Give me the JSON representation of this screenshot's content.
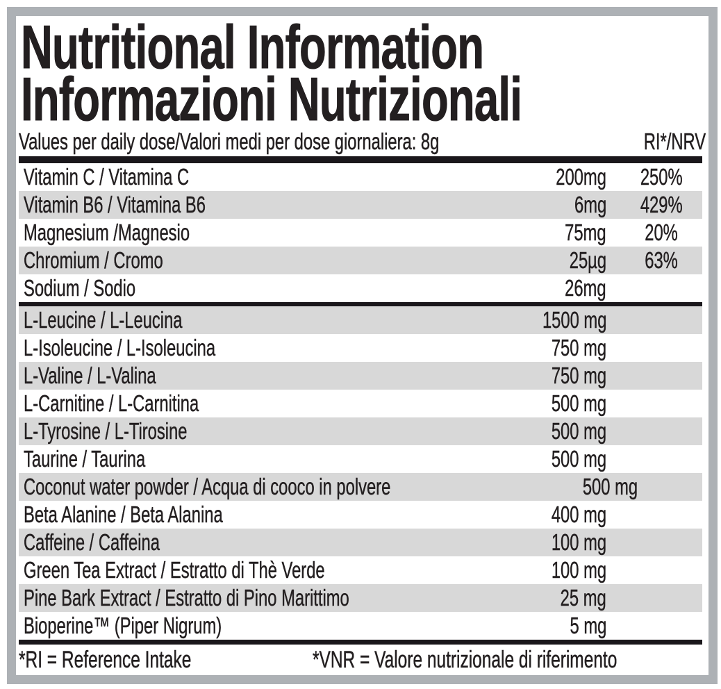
{
  "header": {
    "title_en": "Nutritional Information",
    "title_it": "Informazioni Nutrizionali",
    "dose_statement": "Values per daily dose/Valori medi per dose giornaliera: 8g",
    "ri_header": "RI*/NRV"
  },
  "table": {
    "sections": [
      {
        "id": "vitamins-minerals",
        "rows": [
          {
            "name": "Vitamin C / Vitamina C",
            "amount": "200mg",
            "ri": "250%"
          },
          {
            "name": "Vitamin B6 / Vitamina B6",
            "amount": "6mg",
            "ri": "429%"
          },
          {
            "name": "Magnesium /Magnesio",
            "amount": "75mg",
            "ri": "20%"
          },
          {
            "name": "Chromium / Cromo",
            "amount": "25µg",
            "ri": "63%"
          },
          {
            "name": "Sodium / Sodio",
            "amount": "26mg",
            "ri": ""
          }
        ]
      },
      {
        "id": "active-ingredients",
        "rows": [
          {
            "name": "L-Leucine / L-Leucina",
            "amount": "1500 mg",
            "ri": ""
          },
          {
            "name": "L-Isoleucine / L-Isoleucina",
            "amount": "750 mg",
            "ri": ""
          },
          {
            "name": "L-Valine / L-Valina",
            "amount": "750 mg",
            "ri": ""
          },
          {
            "name": "L-Carnitine / L-Carnitina",
            "amount": "500 mg",
            "ri": ""
          },
          {
            "name": "L-Tyrosine / L-Tirosine",
            "amount": "500 mg",
            "ri": ""
          },
          {
            "name": "Taurine / Taurina",
            "amount": "500 mg",
            "ri": ""
          },
          {
            "name": "Coconut water powder / Acqua di cooco in polvere",
            "amount": "500 mg",
            "ri": ""
          },
          {
            "name": "Beta Alanine / Beta Alanina",
            "amount": "400 mg",
            "ri": ""
          },
          {
            "name": "Caffeine / Caffeina",
            "amount": "100 mg",
            "ri": ""
          },
          {
            "name": "Green Tea Extract / Estratto di Thè Verde",
            "amount": "100 mg",
            "ri": ""
          },
          {
            "name": "Pine Bark Extract / Estratto di Pino Marittimo",
            "amount": "25 mg",
            "ri": ""
          },
          {
            "name": "Bioperine™ (Piper Nigrum)",
            "amount": "5 mg",
            "ri": ""
          }
        ]
      }
    ]
  },
  "footer": {
    "ri_note": "*RI = Reference Intake",
    "vnr_note": "*VNR = Valore nutrizionale di riferimento"
  },
  "colors": {
    "text_black": "#231f20",
    "row_shade": "#d8d8d8",
    "frame_gray": "#adb1b5",
    "divider_black": "#1a171b"
  }
}
